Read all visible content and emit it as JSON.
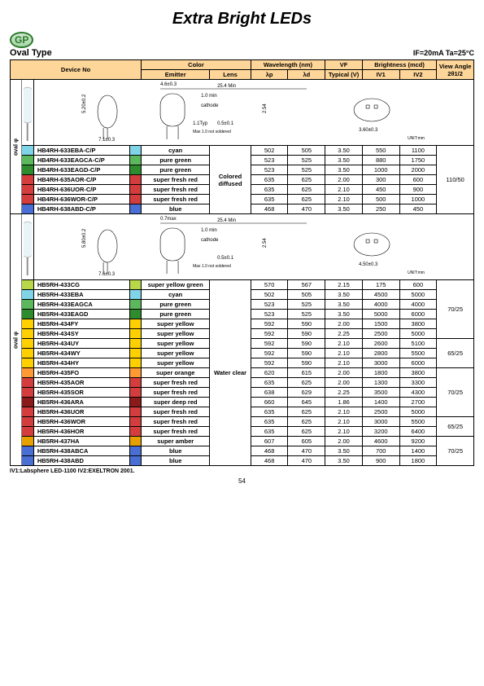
{
  "page": {
    "title": "Extra Bright LEDs",
    "logo": "GP",
    "subheading": "Oval Type",
    "conditions": "IF=20mA  Ta=25°C",
    "footnote": "IV1:Labsphere LED-1100   IV2:EXELTRON 2001.",
    "page_number": "54"
  },
  "headers": {
    "device": "Device No",
    "color": "Color",
    "emitter": "Emitter",
    "lens": "Lens",
    "wavelength": "Wavelength (nm)",
    "lp": "λp",
    "ld": "λd",
    "vf": "VF",
    "vf_typ": "Typical (V)",
    "brightness": "Brightness (mcd)",
    "iv1": "IV1",
    "iv2": "IV2",
    "view": "View Angle 2θ1/2",
    "unit": "UNIT:mm"
  },
  "colors": {
    "header_bg": "#ffd699",
    "cyan": "#7fd4e8",
    "pure_green": "#5cb85c",
    "pure_green2": "#2e8b2e",
    "red": "#d43d3d",
    "dark_red": "#b02020",
    "blue": "#4a6fd4",
    "yellow_green": "#b8d84a",
    "yellow": "#ffd000",
    "orange": "#ff9933",
    "deep_red": "#8b1a1a",
    "amber": "#e6a000"
  },
  "section1": {
    "side": "oval φ",
    "lens": "Colored diffused",
    "view": "110/50",
    "dim_side": "3.60±0.3",
    "rows": [
      {
        "dev": "HB4RH-633EBA-C/P",
        "color": "#7fd4e8",
        "emit": "cyan",
        "lp": "502",
        "ld": "505",
        "vf": "3.50",
        "iv1": "550",
        "iv2": "1100"
      },
      {
        "dev": "HB4RH-633EAGCA-C/P",
        "color": "#5cb85c",
        "emit": "pure green",
        "lp": "523",
        "ld": "525",
        "vf": "3.50",
        "iv1": "880",
        "iv2": "1750"
      },
      {
        "dev": "HB4RH-633EAGD-C/P",
        "color": "#2e8b2e",
        "emit": "pure green",
        "lp": "523",
        "ld": "525",
        "vf": "3.50",
        "iv1": "1000",
        "iv2": "2000"
      },
      {
        "dev": "HB4RH-635AOR-C/P",
        "color": "#d43d3d",
        "emit": "super fresh red",
        "lp": "635",
        "ld": "625",
        "vf": "2.00",
        "iv1": "300",
        "iv2": "600"
      },
      {
        "dev": "HB4RH-636UOR-C/P",
        "color": "#d43d3d",
        "emit": "super fresh red",
        "lp": "635",
        "ld": "625",
        "vf": "2.10",
        "iv1": "450",
        "iv2": "900"
      },
      {
        "dev": "HB4RH-636WOR-C/P",
        "color": "#d43d3d",
        "emit": "super fresh red",
        "lp": "635",
        "ld": "625",
        "vf": "2.10",
        "iv1": "500",
        "iv2": "1000"
      },
      {
        "dev": "HB4RH-638ABD-C/P",
        "color": "#4a6fd4",
        "emit": "blue",
        "lp": "468",
        "ld": "470",
        "vf": "3.50",
        "iv1": "250",
        "iv2": "450"
      }
    ],
    "diag": {
      "h": "5.20±0.2",
      "w": "7.1±0.3",
      "top": "25.4 Min",
      "lead": "4.6±0.3",
      "body": "1.0 min",
      "cath": "cathode",
      "type": "1.1Typ",
      "leadw": "0.5±0.1",
      "note": "Max 1.0 not soldered",
      "pitch": "2.54"
    }
  },
  "section2": {
    "side": "oval φ",
    "lens": "Water clear",
    "dim_side": "4.50±0.3",
    "diag": {
      "h": "5.80±0.2",
      "w": "7.6±0.3",
      "top": "25.4 Min",
      "body": "1.0 min",
      "cath": "cathode",
      "lead": "0.7max",
      "leadw": "0.5±0.1",
      "note": "Max 1.0 not soldered",
      "pitch": "2.54"
    },
    "groups": [
      {
        "view": "70/25",
        "rows": [
          {
            "dev": "HB5RH-433CG",
            "color": "#b8d84a",
            "emit": "super yellow green",
            "lp": "570",
            "ld": "567",
            "vf": "2.15",
            "iv1": "175",
            "iv2": "600"
          },
          {
            "dev": "HB5RH-433EBA",
            "color": "#7fd4e8",
            "emit": "cyan",
            "lp": "502",
            "ld": "505",
            "vf": "3.50",
            "iv1": "4500",
            "iv2": "5000"
          },
          {
            "dev": "HB5RH-433EAGCA",
            "color": "#5cb85c",
            "emit": "pure green",
            "lp": "523",
            "ld": "525",
            "vf": "3.50",
            "iv1": "4000",
            "iv2": "4000"
          },
          {
            "dev": "HB5RH-433EAGD",
            "color": "#2e8b2e",
            "emit": "pure green",
            "lp": "523",
            "ld": "525",
            "vf": "3.50",
            "iv1": "5000",
            "iv2": "6000"
          },
          {
            "dev": "HB5RH-434FY",
            "color": "#ffd000",
            "emit": "super yellow",
            "lp": "592",
            "ld": "590",
            "vf": "2.00",
            "iv1": "1500",
            "iv2": "3800"
          },
          {
            "dev": "HB5RH-434SY",
            "color": "#ffd000",
            "emit": "super yellow",
            "lp": "592",
            "ld": "590",
            "vf": "2.25",
            "iv1": "2500",
            "iv2": "5000"
          }
        ]
      },
      {
        "view": "65/25",
        "rows": [
          {
            "dev": "HB5RH-434UY",
            "color": "#ffd000",
            "emit": "super yellow",
            "lp": "592",
            "ld": "590",
            "vf": "2.10",
            "iv1": "2600",
            "iv2": "5100"
          },
          {
            "dev": "HB5RH-434WY",
            "color": "#ffd000",
            "emit": "super yellow",
            "lp": "592",
            "ld": "590",
            "vf": "2.10",
            "iv1": "2800",
            "iv2": "5500"
          },
          {
            "dev": "HB5RH-434HY",
            "color": "#ffd000",
            "emit": "super yellow",
            "lp": "592",
            "ld": "590",
            "vf": "2.10",
            "iv1": "3000",
            "iv2": "6000"
          }
        ]
      },
      {
        "view": "70/25",
        "rows": [
          {
            "dev": "HB5RH-435FO",
            "color": "#ff9933",
            "emit": "super orange",
            "lp": "620",
            "ld": "615",
            "vf": "2.00",
            "iv1": "1800",
            "iv2": "3800"
          },
          {
            "dev": "HB5RH-435AOR",
            "color": "#d43d3d",
            "emit": "super fresh red",
            "lp": "635",
            "ld": "625",
            "vf": "2.00",
            "iv1": "1300",
            "iv2": "3300"
          },
          {
            "dev": "HB5RH-435SOR",
            "color": "#d43d3d",
            "emit": "super fresh red",
            "lp": "638",
            "ld": "629",
            "vf": "2.25",
            "iv1": "3500",
            "iv2": "4300"
          },
          {
            "dev": "HB5RH-436ARA",
            "color": "#8b1a1a",
            "emit": "super deep red",
            "lp": "660",
            "ld": "645",
            "vf": "1.86",
            "iv1": "1400",
            "iv2": "2700"
          },
          {
            "dev": "HB5RH-436UOR",
            "color": "#d43d3d",
            "emit": "super fresh red",
            "lp": "635",
            "ld": "625",
            "vf": "2.10",
            "iv1": "2500",
            "iv2": "5000"
          }
        ]
      },
      {
        "view": "65/25",
        "rows": [
          {
            "dev": "HB5RH-436WOR",
            "color": "#d43d3d",
            "emit": "super fresh red",
            "lp": "635",
            "ld": "625",
            "vf": "2.10",
            "iv1": "3000",
            "iv2": "5500"
          },
          {
            "dev": "HB5RH-436HOR",
            "color": "#d43d3d",
            "emit": "super fresh red",
            "lp": "635",
            "ld": "625",
            "vf": "2.10",
            "iv1": "3200",
            "iv2": "6400"
          }
        ]
      },
      {
        "view": "70/25",
        "rows": [
          {
            "dev": "HB5RH-437HA",
            "color": "#e6a000",
            "emit": "super amber",
            "lp": "607",
            "ld": "605",
            "vf": "2.00",
            "iv1": "4600",
            "iv2": "9200"
          },
          {
            "dev": "HB5RH-438ABCA",
            "color": "#4a6fd4",
            "emit": "blue",
            "lp": "468",
            "ld": "470",
            "vf": "3.50",
            "iv1": "700",
            "iv2": "1400"
          },
          {
            "dev": "HB5RH-438ABD",
            "color": "#4a6fd4",
            "emit": "blue",
            "lp": "468",
            "ld": "470",
            "vf": "3.50",
            "iv1": "900",
            "iv2": "1800"
          }
        ]
      }
    ]
  }
}
